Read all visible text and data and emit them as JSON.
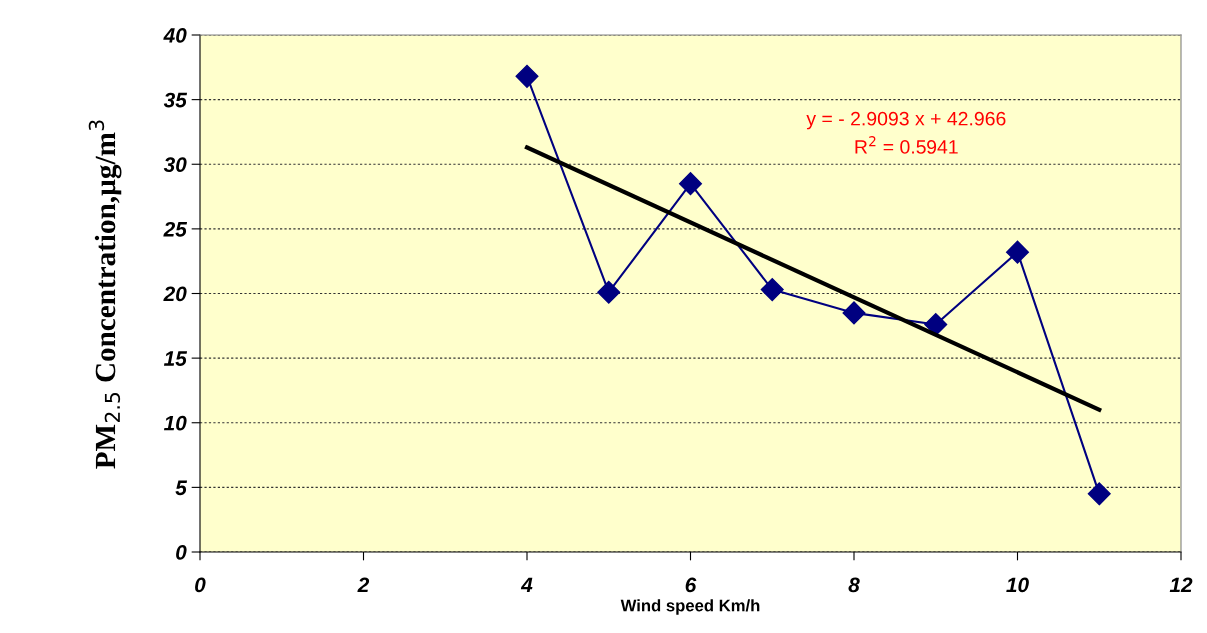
{
  "chart_data": {
    "type": "line",
    "xlabel": "Wind speed Km/h",
    "ylabel": "PM$_{2.5}$ Concentration,µg/m$^{3}$",
    "x": [
      4,
      5,
      6,
      7,
      8,
      9,
      10,
      11
    ],
    "series": [
      {
        "color": "#000080",
        "values": [
          36.8,
          20.1,
          28.5,
          20.3,
          18.5,
          17.6,
          23.2,
          4.5
        ],
        "marker": "diamond"
      },
      {
        "color": "#000000",
        "x": [
          4,
          11
        ],
        "values": [
          31.3,
          11.0
        ],
        "marker": "none"
      }
    ],
    "xlim": [
      0,
      12
    ],
    "xticks": [
      0,
      2,
      4,
      6,
      8,
      10,
      12
    ],
    "ylim": [
      0,
      40
    ],
    "yticks": [
      0,
      5,
      10,
      15,
      20,
      25,
      30,
      35,
      40
    ],
    "grid": "y",
    "legend": false,
    "annotations": [
      "y = - 2.9093 x + 42.966",
      "R$^{2}$ = 0.5941"
    ]
  }
}
